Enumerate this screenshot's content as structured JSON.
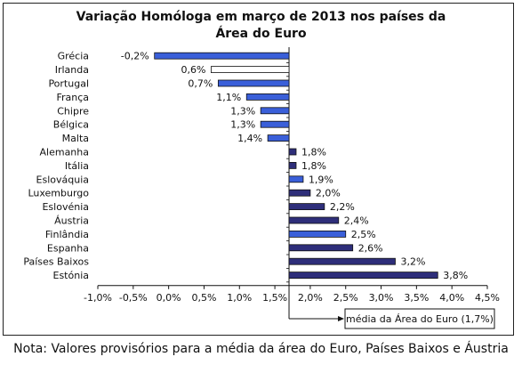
{
  "chart_data": {
    "type": "bar",
    "orientation": "horizontal",
    "title_line1": "Variação Homóloga em março de 2013 nos países da",
    "title_line2": "Área do Euro",
    "categories": [
      "Grécia",
      "Irlanda",
      "Portugal",
      "França",
      "Chipre",
      "Bélgica",
      "Malta",
      "Alemanha",
      "Itália",
      "Eslováquia",
      "Luxemburgo",
      "Eslovénia",
      "Áustria",
      "Finlândia",
      "Espanha",
      "Países Baixos",
      "Estónia"
    ],
    "values": [
      -0.2,
      0.6,
      0.7,
      1.1,
      1.3,
      1.3,
      1.4,
      1.8,
      1.8,
      1.9,
      2.0,
      2.2,
      2.4,
      2.5,
      2.6,
      3.2,
      3.8
    ],
    "value_labels": [
      "-0,2%",
      "0,6%",
      "0,7%",
      "1,1%",
      "1,3%",
      "1,3%",
      "1,4%",
      "1,8%",
      "1,8%",
      "1,9%",
      "2,0%",
      "2,2%",
      "2,4%",
      "2,5%",
      "2,6%",
      "3,2%",
      "3,8%"
    ],
    "bar_colors": [
      "#3a5fd9",
      "#ffffff",
      "#3a5fd9",
      "#3a5fd9",
      "#3a5fd9",
      "#3a5fd9",
      "#3a5fd9",
      "#2e2e7a",
      "#2e2e7a",
      "#3a5fd9",
      "#2e2e7a",
      "#2e2e7a",
      "#2e2e7a",
      "#3a5fd9",
      "#2e2e7a",
      "#2e2e7a",
      "#2e2e7a"
    ],
    "xlim": [
      -1.0,
      4.5
    ],
    "xticks": [
      -1.0,
      -0.5,
      0.0,
      0.5,
      1.0,
      1.5,
      2.0,
      2.5,
      3.0,
      3.5,
      4.0,
      4.5
    ],
    "xtick_labels": [
      "-1,0%",
      "-0,5%",
      "0,0%",
      "0,5%",
      "1,0%",
      "1,5%",
      "2,0%",
      "2,5%",
      "3,0%",
      "3,5%",
      "4,0%",
      "4,5%"
    ],
    "reference_value": 1.7,
    "annotation": "média da Área do Euro (1,7%)",
    "grid": false
  },
  "note": "Nota: Valores provisórios para a média da área do Euro, Países Baixos e Áustria"
}
